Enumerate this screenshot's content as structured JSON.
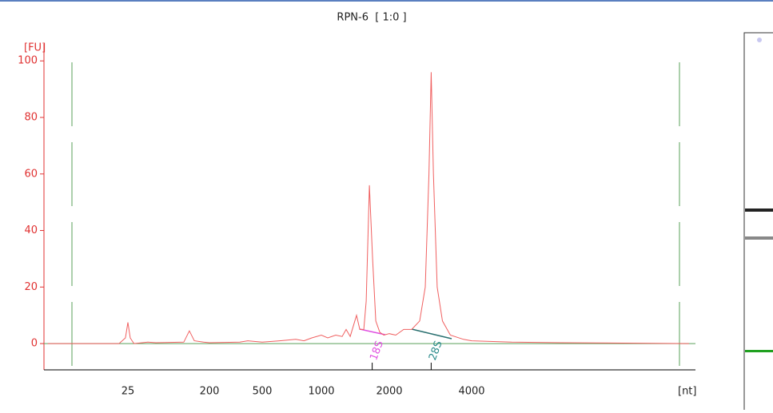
{
  "chart_data": {
    "type": "line",
    "title": "RPN-6  [ 1:0 ]",
    "ylabel": "[FU]",
    "xlabel": "[nt]",
    "color": "#f06060",
    "log_x": true,
    "xlim": [
      3,
      26000
    ],
    "xticks": [
      25,
      200,
      500,
      1000,
      2000,
      4000
    ],
    "ylim": [
      -9.3,
      106
    ],
    "yticks": [
      0,
      20,
      40,
      60,
      80,
      100
    ],
    "x": [
      3.3,
      20,
      23.5,
      25,
      26.5,
      29.2,
      41.6,
      51,
      104,
      120,
      136,
      172,
      200,
      339,
      389,
      500,
      614,
      741,
      815,
      894,
      1000,
      1067,
      1158,
      1236,
      1288,
      1342,
      1432,
      1480,
      1542,
      1580,
      1632,
      1686,
      1742,
      1815,
      1891,
      2000,
      2112,
      2258,
      2415,
      2582,
      2707,
      2793,
      2845,
      2900,
      2993,
      3128,
      3344,
      3735,
      4000,
      5598,
      8398,
      24630
    ],
    "values": [
      0,
      0,
      2,
      7.5,
      2,
      0,
      0.5,
      0.3,
      0.5,
      4.5,
      1,
      0.5,
      0.3,
      0.5,
      1,
      0.5,
      1,
      1.5,
      1,
      2,
      3,
      2,
      3,
      2.5,
      5,
      2.5,
      10,
      5,
      5,
      15,
      56,
      30,
      8,
      4,
      3,
      3.5,
      3,
      5,
      5,
      8,
      20,
      60,
      96,
      60,
      20,
      8,
      3,
      1.5,
      1,
      0.5,
      0.3,
      0
    ],
    "annotations": [
      {
        "label": "18S",
        "x": 1680,
        "color": "#e050e0"
      },
      {
        "label": "28S",
        "x": 2845,
        "color": "#2a8a8a"
      }
    ]
  }
}
